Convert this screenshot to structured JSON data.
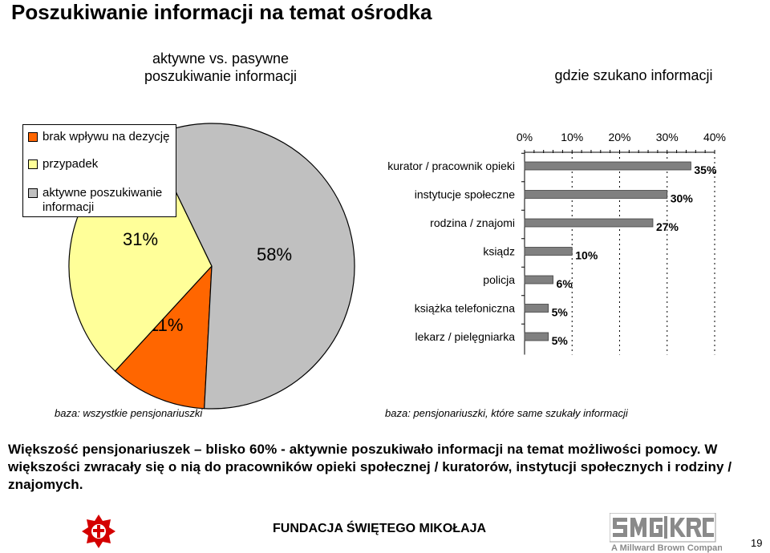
{
  "page": {
    "title": "Poszukiwanie informacji na temat ośrodka",
    "left_heading_line1": "aktywne vs. pasywne",
    "left_heading_line2": "poszukiwanie informacji",
    "right_heading": "gdzie szukano informacji",
    "left_base": "baza: wszystkie pensjonariuszki",
    "right_base": "baza: pensjonariuszki, które same szukały informacji",
    "summary": "Większość pensjonariuszek – blisko 60% - aktywnie poszukiwało informacji na temat możliwości pomocy. W większości zwracały się o nią do pracowników opieki społecznej / kuratorów, instytucji społecznych i rodziny / znajomych.",
    "footer": "FUNDACJA ŚWIĘTEGO MIKOŁAJA",
    "page_number": "19",
    "logo_smg_krc_text": "SMG KRC",
    "logo_millward_text": "A Millward Brown Company"
  },
  "chart_data": [
    {
      "type": "pie",
      "slices": [
        {
          "label": "brak wpływu na dezycję",
          "value": 11,
          "value_label": "11%",
          "color": "#ff6600"
        },
        {
          "label": "przypadek",
          "value": 31,
          "value_label": "31%",
          "color": "#ffff99"
        },
        {
          "label": "aktywne poszukiwanie informacji",
          "value": 58,
          "value_label": "58%",
          "color": "#c0c0c0"
        }
      ]
    },
    {
      "type": "bar",
      "orientation": "horizontal",
      "categories": [
        "kurator / pracownik opieki",
        "instytucje społeczne",
        "rodzina / znajomi",
        "ksiądz",
        "policja",
        "książka telefoniczna",
        "lekarz / pielęgniarka"
      ],
      "values": [
        35,
        30,
        27,
        10,
        6,
        5,
        5
      ],
      "value_labels": [
        "35%",
        "30%",
        "27%",
        "10%",
        "6%",
        "5%",
        "5%"
      ],
      "xlim": [
        0,
        40
      ],
      "xticks": [
        0,
        10,
        20,
        30,
        40
      ],
      "xtick_labels": [
        "0%",
        "10%",
        "20%",
        "30%",
        "40%"
      ],
      "axis_position": "top",
      "bar_color": "#808080"
    }
  ]
}
